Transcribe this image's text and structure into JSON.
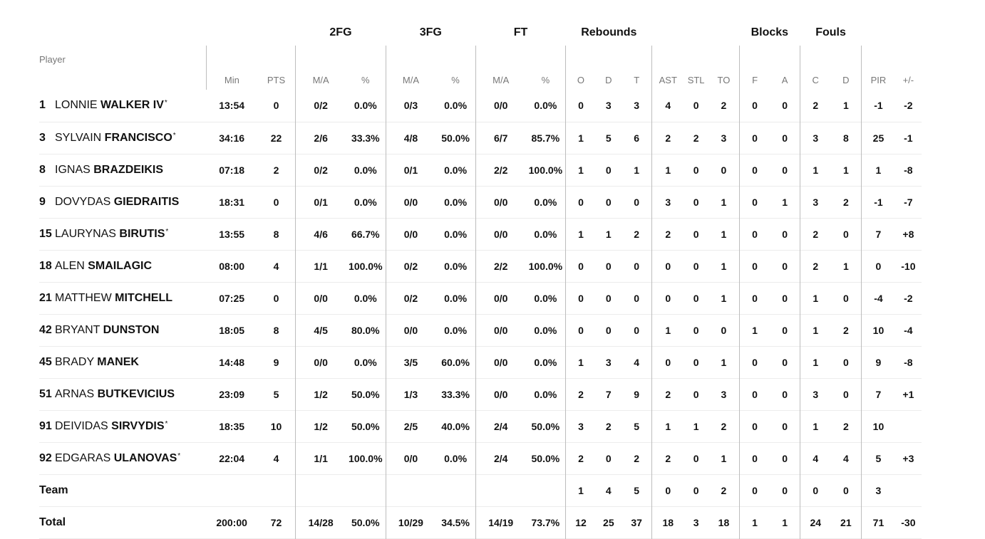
{
  "groups": {
    "fg2": "2FG",
    "fg3": "3FG",
    "ft": "FT",
    "rebounds": "Rebounds",
    "blocks": "Blocks",
    "fouls": "Fouls"
  },
  "columns": {
    "player": "Player",
    "min": "Min",
    "pts": "PTS",
    "fg2_ma": "M/A",
    "fg2_pct": "%",
    "fg3_ma": "M/A",
    "fg3_pct": "%",
    "ft_ma": "M/A",
    "ft_pct": "%",
    "reb_o": "O",
    "reb_d": "D",
    "reb_t": "T",
    "ast": "AST",
    "stl": "STL",
    "to": "TO",
    "blk_f": "F",
    "blk_a": "A",
    "foul_c": "C",
    "foul_d": "D",
    "pir": "PIR",
    "pm": "+/-"
  },
  "players": [
    {
      "num": "1",
      "first": "LONNIE",
      "last": "WALKER IV",
      "star": "*",
      "min": "13:54",
      "pts": "0",
      "fg2_ma": "0/2",
      "fg2_pct": "0.0%",
      "fg3_ma": "0/3",
      "fg3_pct": "0.0%",
      "ft_ma": "0/0",
      "ft_pct": "0.0%",
      "o": "0",
      "d": "3",
      "t": "3",
      "ast": "4",
      "stl": "0",
      "to": "2",
      "bf": "0",
      "ba": "0",
      "fc": "2",
      "fd": "1",
      "pir": "-1",
      "pm": "-2"
    },
    {
      "num": "3",
      "first": "SYLVAIN",
      "last": "FRANCISCO",
      "star": "*",
      "min": "34:16",
      "pts": "22",
      "fg2_ma": "2/6",
      "fg2_pct": "33.3%",
      "fg3_ma": "4/8",
      "fg3_pct": "50.0%",
      "ft_ma": "6/7",
      "ft_pct": "85.7%",
      "o": "1",
      "d": "5",
      "t": "6",
      "ast": "2",
      "stl": "2",
      "to": "3",
      "bf": "0",
      "ba": "0",
      "fc": "3",
      "fd": "8",
      "pir": "25",
      "pm": "-1"
    },
    {
      "num": "8",
      "first": "IGNAS",
      "last": "BRAZDEIKIS",
      "star": "",
      "min": "07:18",
      "pts": "2",
      "fg2_ma": "0/2",
      "fg2_pct": "0.0%",
      "fg3_ma": "0/1",
      "fg3_pct": "0.0%",
      "ft_ma": "2/2",
      "ft_pct": "100.0%",
      "o": "1",
      "d": "0",
      "t": "1",
      "ast": "1",
      "stl": "0",
      "to": "0",
      "bf": "0",
      "ba": "0",
      "fc": "1",
      "fd": "1",
      "pir": "1",
      "pm": "-8"
    },
    {
      "num": "9",
      "first": "DOVYDAS",
      "last": "GIEDRAITIS",
      "star": "",
      "min": "18:31",
      "pts": "0",
      "fg2_ma": "0/1",
      "fg2_pct": "0.0%",
      "fg3_ma": "0/0",
      "fg3_pct": "0.0%",
      "ft_ma": "0/0",
      "ft_pct": "0.0%",
      "o": "0",
      "d": "0",
      "t": "0",
      "ast": "3",
      "stl": "0",
      "to": "1",
      "bf": "0",
      "ba": "1",
      "fc": "3",
      "fd": "2",
      "pir": "-1",
      "pm": "-7"
    },
    {
      "num": "15",
      "first": "LAURYNAS",
      "last": "BIRUTIS",
      "star": "*",
      "min": "13:55",
      "pts": "8",
      "fg2_ma": "4/6",
      "fg2_pct": "66.7%",
      "fg3_ma": "0/0",
      "fg3_pct": "0.0%",
      "ft_ma": "0/0",
      "ft_pct": "0.0%",
      "o": "1",
      "d": "1",
      "t": "2",
      "ast": "2",
      "stl": "0",
      "to": "1",
      "bf": "0",
      "ba": "0",
      "fc": "2",
      "fd": "0",
      "pir": "7",
      "pm": "+8"
    },
    {
      "num": "18",
      "first": "ALEN",
      "last": "SMAILAGIC",
      "star": "",
      "min": "08:00",
      "pts": "4",
      "fg2_ma": "1/1",
      "fg2_pct": "100.0%",
      "fg3_ma": "0/2",
      "fg3_pct": "0.0%",
      "ft_ma": "2/2",
      "ft_pct": "100.0%",
      "o": "0",
      "d": "0",
      "t": "0",
      "ast": "0",
      "stl": "0",
      "to": "1",
      "bf": "0",
      "ba": "0",
      "fc": "2",
      "fd": "1",
      "pir": "0",
      "pm": "-10"
    },
    {
      "num": "21",
      "first": "MATTHEW",
      "last": "MITCHELL",
      "star": "",
      "min": "07:25",
      "pts": "0",
      "fg2_ma": "0/0",
      "fg2_pct": "0.0%",
      "fg3_ma": "0/2",
      "fg3_pct": "0.0%",
      "ft_ma": "0/0",
      "ft_pct": "0.0%",
      "o": "0",
      "d": "0",
      "t": "0",
      "ast": "0",
      "stl": "0",
      "to": "1",
      "bf": "0",
      "ba": "0",
      "fc": "1",
      "fd": "0",
      "pir": "-4",
      "pm": "-2"
    },
    {
      "num": "42",
      "first": "BRYANT",
      "last": "DUNSTON",
      "star": "",
      "min": "18:05",
      "pts": "8",
      "fg2_ma": "4/5",
      "fg2_pct": "80.0%",
      "fg3_ma": "0/0",
      "fg3_pct": "0.0%",
      "ft_ma": "0/0",
      "ft_pct": "0.0%",
      "o": "0",
      "d": "0",
      "t": "0",
      "ast": "1",
      "stl": "0",
      "to": "0",
      "bf": "1",
      "ba": "0",
      "fc": "1",
      "fd": "2",
      "pir": "10",
      "pm": "-4"
    },
    {
      "num": "45",
      "first": "BRADY",
      "last": "MANEK",
      "star": "",
      "min": "14:48",
      "pts": "9",
      "fg2_ma": "0/0",
      "fg2_pct": "0.0%",
      "fg3_ma": "3/5",
      "fg3_pct": "60.0%",
      "ft_ma": "0/0",
      "ft_pct": "0.0%",
      "o": "1",
      "d": "3",
      "t": "4",
      "ast": "0",
      "stl": "0",
      "to": "1",
      "bf": "0",
      "ba": "0",
      "fc": "1",
      "fd": "0",
      "pir": "9",
      "pm": "-8"
    },
    {
      "num": "51",
      "first": "ARNAS",
      "last": "BUTKEVICIUS",
      "star": "",
      "min": "23:09",
      "pts": "5",
      "fg2_ma": "1/2",
      "fg2_pct": "50.0%",
      "fg3_ma": "1/3",
      "fg3_pct": "33.3%",
      "ft_ma": "0/0",
      "ft_pct": "0.0%",
      "o": "2",
      "d": "7",
      "t": "9",
      "ast": "2",
      "stl": "0",
      "to": "3",
      "bf": "0",
      "ba": "0",
      "fc": "3",
      "fd": "0",
      "pir": "7",
      "pm": "+1"
    },
    {
      "num": "91",
      "first": "DEIVIDAS",
      "last": "SIRVYDIS",
      "star": "*",
      "min": "18:35",
      "pts": "10",
      "fg2_ma": "1/2",
      "fg2_pct": "50.0%",
      "fg3_ma": "2/5",
      "fg3_pct": "40.0%",
      "ft_ma": "2/4",
      "ft_pct": "50.0%",
      "o": "3",
      "d": "2",
      "t": "5",
      "ast": "1",
      "stl": "1",
      "to": "2",
      "bf": "0",
      "ba": "0",
      "fc": "1",
      "fd": "2",
      "pir": "10",
      "pm": ""
    },
    {
      "num": "92",
      "first": "EDGARAS",
      "last": "ULANOVAS",
      "star": "*",
      "min": "22:04",
      "pts": "4",
      "fg2_ma": "1/1",
      "fg2_pct": "100.0%",
      "fg3_ma": "0/0",
      "fg3_pct": "0.0%",
      "ft_ma": "2/4",
      "ft_pct": "50.0%",
      "o": "2",
      "d": "0",
      "t": "2",
      "ast": "2",
      "stl": "0",
      "to": "1",
      "bf": "0",
      "ba": "0",
      "fc": "4",
      "fd": "4",
      "pir": "5",
      "pm": "+3"
    }
  ],
  "team": {
    "label": "Team",
    "o": "1",
    "d": "4",
    "t": "5",
    "ast": "0",
    "stl": "0",
    "to": "2",
    "bf": "0",
    "ba": "0",
    "fc": "0",
    "fd": "0",
    "pir": "3"
  },
  "total": {
    "label": "Total",
    "min": "200:00",
    "pts": "72",
    "fg2_ma": "14/28",
    "fg2_pct": "50.0%",
    "fg3_ma": "10/29",
    "fg3_pct": "34.5%",
    "ft_ma": "14/19",
    "ft_pct": "73.7%",
    "o": "12",
    "d": "25",
    "t": "37",
    "ast": "18",
    "stl": "3",
    "to": "18",
    "bf": "1",
    "ba": "1",
    "fc": "24",
    "fd": "21",
    "pir": "71",
    "pm": "-30"
  }
}
